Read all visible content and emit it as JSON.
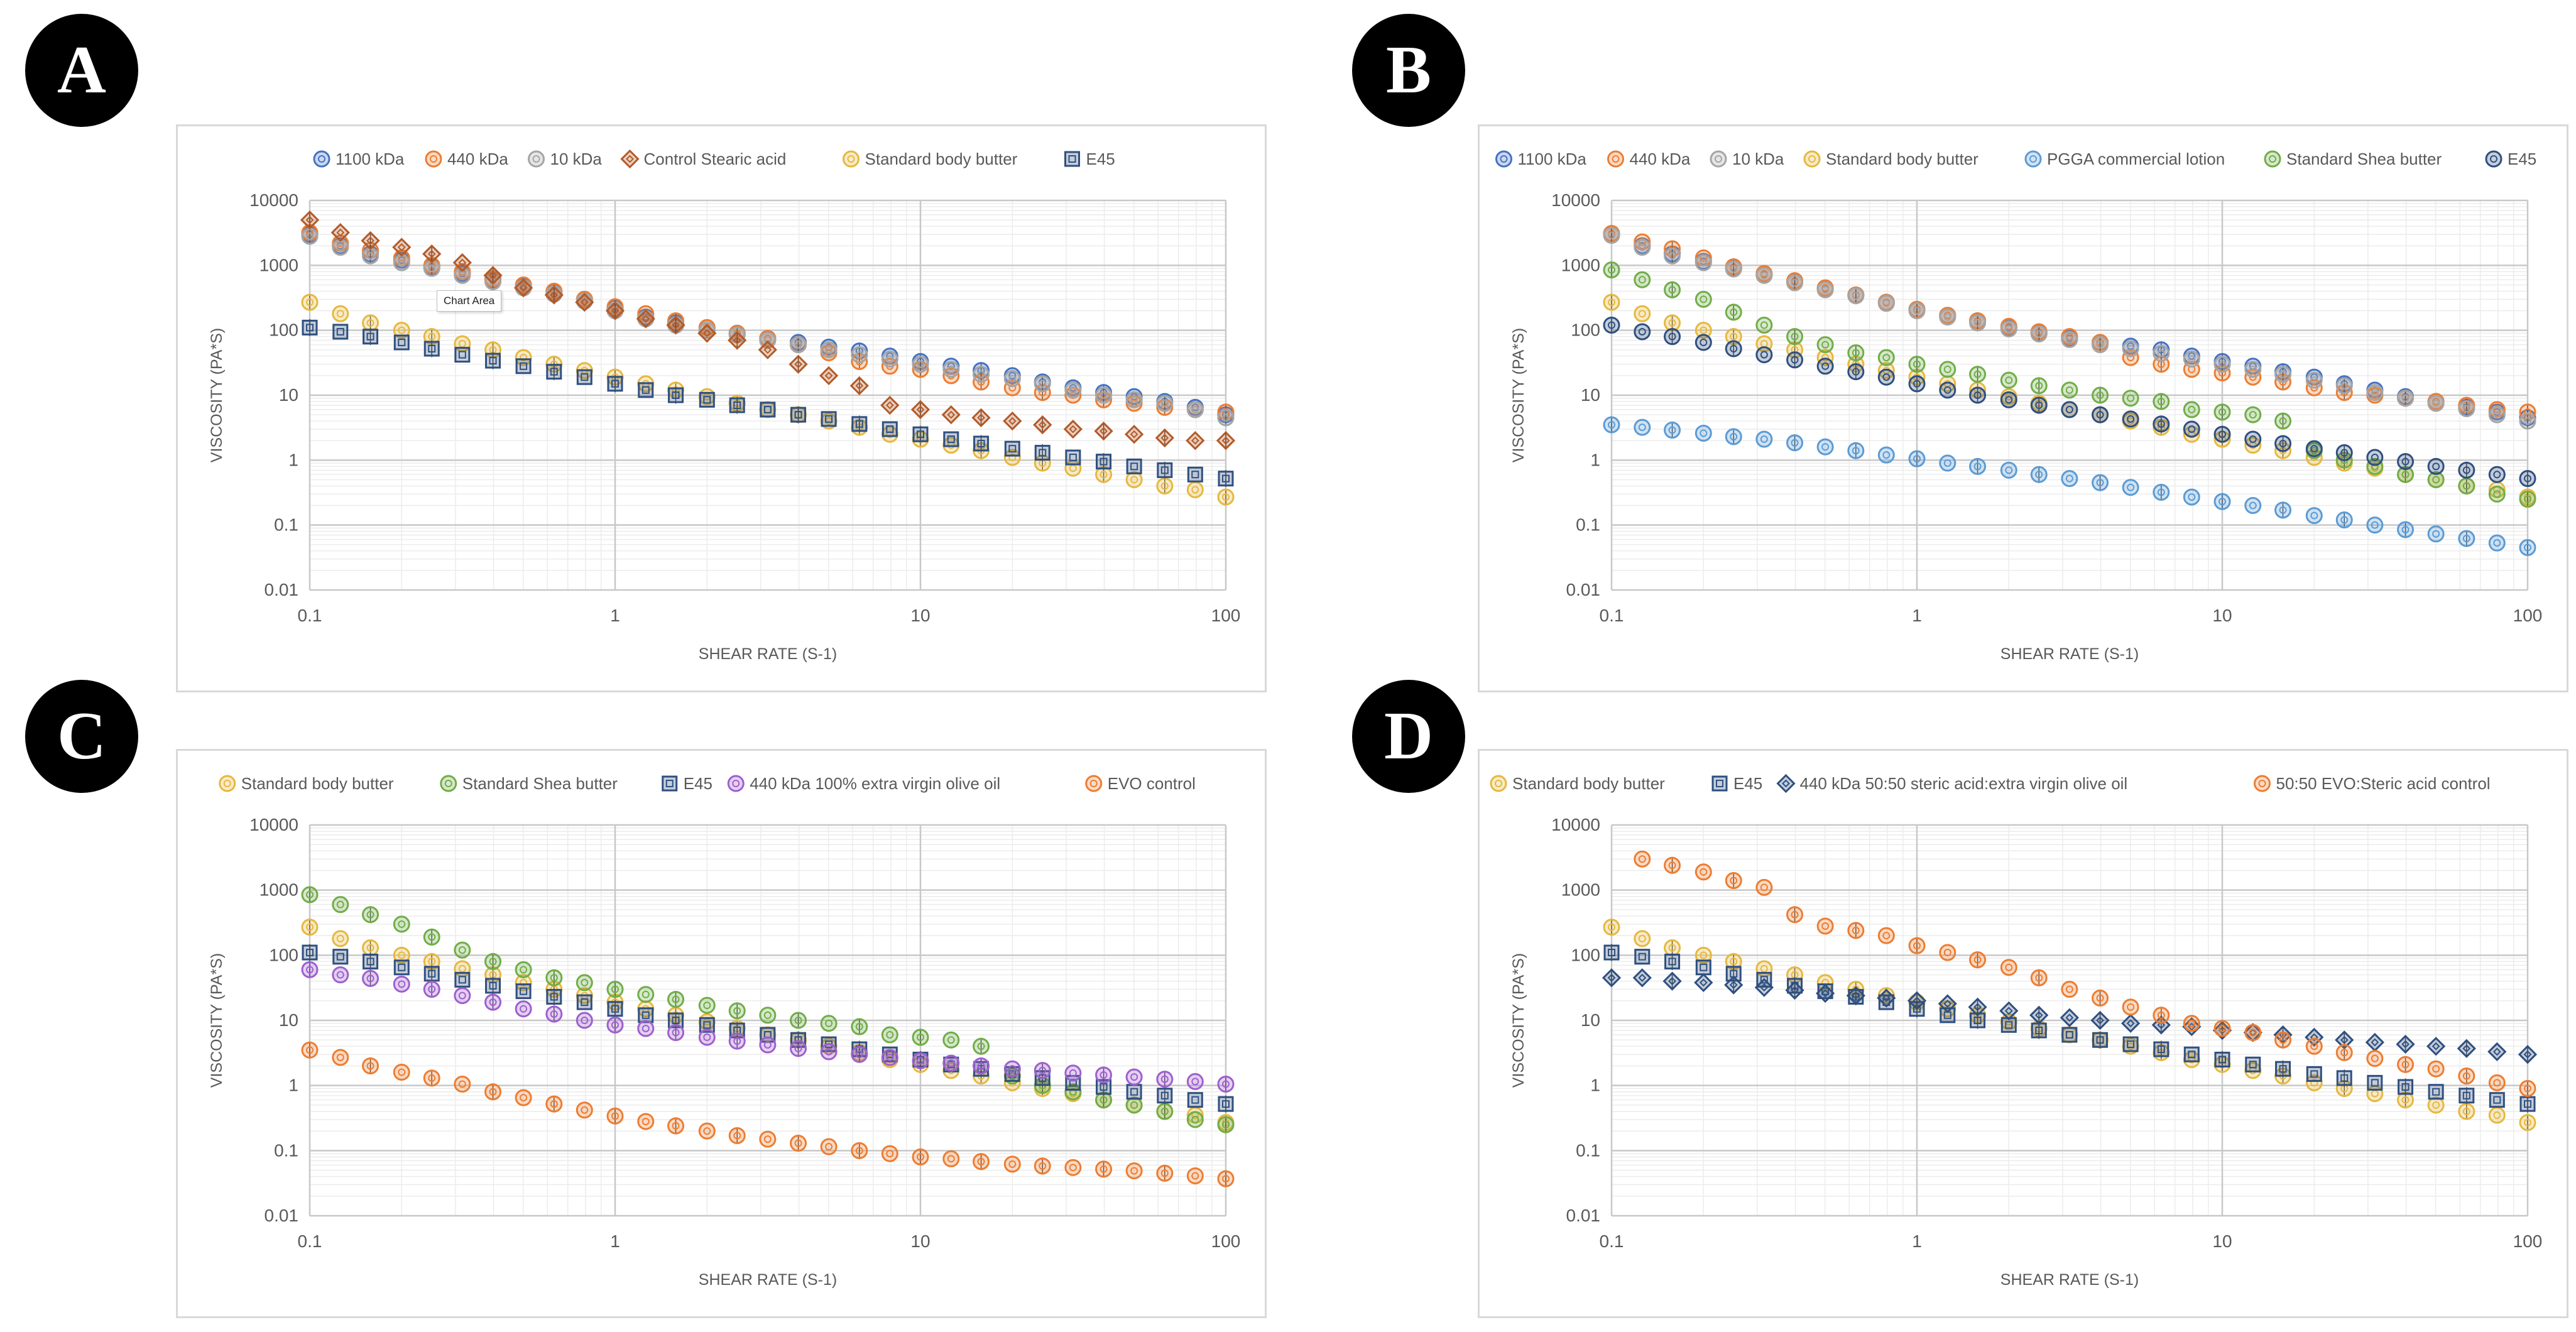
{
  "panels": [
    {
      "label": "A"
    },
    {
      "label": "B"
    },
    {
      "label": "C"
    },
    {
      "label": "D"
    }
  ],
  "tooltip": "Chart Area",
  "series_colors": {
    "1100 kDa": "#4472C4",
    "440 kDa": "#ED7D31",
    "10 kDa": "#A5A5A5",
    "Control Stearic acid": "#B35A28",
    "Standard body butter": "#E6B83E",
    "E45": "#2F4F7F",
    "PGGA commercial lotion": "#5B9BD5",
    "Standard Shea butter": "#70AD47",
    "440 kDa 100% extra virgin olive oil": "#9E5FCF",
    "EVO control": "#ED7D31",
    "440 kDa 50:50 steric acid:extra virgin olive oil": "#2F4F7F",
    "50:50 EVO:Steric acid control": "#ED7D31"
  },
  "chart_data": [
    {
      "panel": "A",
      "type": "scatter",
      "x": [
        0.1,
        0.126,
        0.158,
        0.2,
        0.251,
        0.316,
        0.398,
        0.501,
        0.631,
        0.794,
        1,
        1.26,
        1.58,
        2,
        2.51,
        3.16,
        3.98,
        5.01,
        6.31,
        7.94,
        10,
        12.6,
        15.8,
        20,
        25.1,
        31.6,
        39.8,
        50.1,
        63.1,
        79.4,
        100
      ],
      "xlabel": "SHEAR RATE (S-1)",
      "ylabel": "VISCOSITY (PA*S)",
      "xlim": [
        0.1,
        100
      ],
      "ylim": [
        0.01,
        10000
      ],
      "xscale": "log",
      "yscale": "log",
      "xticks": [
        "0.1",
        "1",
        "10",
        "100"
      ],
      "yticks": [
        "0.01",
        "0.1",
        "1",
        "10",
        "100",
        "1000",
        "10000"
      ],
      "grid": true,
      "legend": "top",
      "series": [
        {
          "name": "1100 kDa",
          "marker": "circle",
          "values": [
            3000,
            2000,
            1500,
            1200,
            950,
            750,
            600,
            480,
            390,
            300,
            220,
            160,
            130,
            110,
            90,
            75,
            65,
            55,
            48,
            40,
            33,
            28,
            24,
            20,
            16,
            13,
            11,
            9.5,
            8,
            6.5,
            5
          ]
        },
        {
          "name": "440 kDa",
          "marker": "circle",
          "values": [
            3200,
            2200,
            1700,
            1300,
            1000,
            800,
            620,
            500,
            400,
            300,
            230,
            180,
            140,
            110,
            90,
            75,
            60,
            45,
            33,
            28,
            25,
            20,
            16,
            13,
            11,
            10,
            8.5,
            7.5,
            6.5,
            6,
            5.5
          ]
        },
        {
          "name": "10 kDa",
          "marker": "circle",
          "values": [
            2800,
            1900,
            1400,
            1100,
            900,
            700,
            560,
            450,
            360,
            280,
            200,
            150,
            120,
            100,
            85,
            70,
            60,
            50,
            42,
            36,
            30,
            25,
            21,
            18,
            15,
            12,
            10,
            8.5,
            7.5,
            6,
            4.5
          ]
        },
        {
          "name": "Control Stearic acid",
          "marker": "diamond",
          "values": [
            5000,
            3200,
            2400,
            1900,
            1500,
            1100,
            700,
            450,
            350,
            270,
            200,
            150,
            120,
            90,
            70,
            50,
            30,
            20,
            14,
            7,
            6,
            5,
            4.5,
            4,
            3.5,
            3,
            2.8,
            2.5,
            2.2,
            2,
            2
          ]
        },
        {
          "name": "Standard body butter",
          "marker": "circle",
          "values": [
            270,
            180,
            130,
            100,
            80,
            62,
            50,
            38,
            30,
            24,
            19,
            15,
            12,
            9.5,
            7.5,
            6,
            5,
            4,
            3.2,
            2.5,
            2.1,
            1.7,
            1.4,
            1.1,
            0.9,
            0.75,
            0.6,
            0.5,
            0.4,
            0.35,
            0.27
          ]
        },
        {
          "name": "E45",
          "marker": "square",
          "values": [
            110,
            95,
            80,
            65,
            52,
            42,
            34,
            28,
            23,
            19,
            15,
            12,
            10,
            8.5,
            7,
            6,
            5,
            4.3,
            3.6,
            3,
            2.5,
            2.1,
            1.8,
            1.5,
            1.3,
            1.1,
            0.95,
            0.8,
            0.7,
            0.6,
            0.52
          ]
        }
      ]
    },
    {
      "panel": "B",
      "type": "scatter",
      "x": [
        0.1,
        0.126,
        0.158,
        0.2,
        0.251,
        0.316,
        0.398,
        0.501,
        0.631,
        0.794,
        1,
        1.26,
        1.58,
        2,
        2.51,
        3.16,
        3.98,
        5.01,
        6.31,
        7.94,
        10,
        12.6,
        15.8,
        20,
        25.1,
        31.6,
        39.8,
        50.1,
        63.1,
        79.4,
        100
      ],
      "xlabel": "SHEAR RATE (S-1)",
      "ylabel": "VISCOSITY (PA*S)",
      "xlim": [
        0.1,
        100
      ],
      "ylim": [
        0.01,
        10000
      ],
      "xscale": "log",
      "yscale": "log",
      "xticks": [
        "0.1",
        "1",
        "10",
        "100"
      ],
      "yticks": [
        "0.01",
        "0.1",
        "1",
        "10",
        "100",
        "1000",
        "10000"
      ],
      "grid": true,
      "legend": "top",
      "series": [
        {
          "name": "1100 kDa",
          "marker": "circle",
          "values": [
            3000,
            2000,
            1500,
            1150,
            900,
            720,
            560,
            440,
            350,
            270,
            210,
            170,
            140,
            110,
            90,
            75,
            65,
            57,
            50,
            40,
            33,
            28,
            23,
            19,
            15,
            12,
            9.5,
            8,
            6.5,
            5.5,
            4.5
          ]
        },
        {
          "name": "440 kDa",
          "marker": "circle",
          "values": [
            3100,
            2300,
            1800,
            1300,
            950,
            750,
            580,
            450,
            350,
            270,
            210,
            170,
            140,
            115,
            95,
            80,
            65,
            38,
            30,
            25,
            22,
            19,
            16,
            13,
            11,
            10,
            9,
            8,
            7,
            6,
            5.5
          ]
        },
        {
          "name": "10 kDa",
          "marker": "circle",
          "values": [
            2900,
            1900,
            1400,
            1100,
            880,
            700,
            540,
            420,
            340,
            260,
            200,
            160,
            130,
            105,
            88,
            72,
            60,
            52,
            44,
            36,
            30,
            25,
            21,
            17,
            14,
            11,
            9,
            7.5,
            6.2,
            5,
            4
          ]
        },
        {
          "name": "Standard body butter",
          "marker": "circle",
          "values": [
            270,
            180,
            130,
            100,
            80,
            62,
            50,
            38,
            30,
            24,
            19,
            15,
            12,
            9.5,
            7.5,
            6,
            5,
            4,
            3.2,
            2.5,
            2.1,
            1.7,
            1.4,
            1.1,
            0.9,
            0.75,
            0.6,
            0.5,
            0.4,
            0.35,
            0.27
          ]
        },
        {
          "name": "PGGA commercial lotion",
          "marker": "circle",
          "values": [
            3.5,
            3.2,
            2.9,
            2.6,
            2.3,
            2.1,
            1.85,
            1.6,
            1.4,
            1.2,
            1.05,
            0.9,
            0.8,
            0.7,
            0.6,
            0.52,
            0.45,
            0.38,
            0.32,
            0.27,
            0.23,
            0.2,
            0.17,
            0.14,
            0.12,
            0.1,
            0.085,
            0.073,
            0.062,
            0.053,
            0.045
          ]
        },
        {
          "name": "Standard Shea butter",
          "marker": "circle",
          "values": [
            850,
            600,
            420,
            300,
            190,
            120,
            80,
            60,
            45,
            38,
            30,
            25,
            21,
            17,
            14,
            12,
            10,
            9,
            8,
            6,
            5.5,
            5,
            4,
            1.4,
            1,
            0.8,
            0.6,
            0.5,
            0.4,
            0.3,
            0.25
          ]
        },
        {
          "name": "E45",
          "marker": "circle",
          "values": [
            120,
            95,
            80,
            65,
            52,
            42,
            35,
            28,
            23,
            19,
            15,
            12,
            10,
            8.5,
            7,
            6,
            5,
            4.3,
            3.6,
            3,
            2.5,
            2.1,
            1.8,
            1.5,
            1.3,
            1.1,
            0.95,
            0.8,
            0.7,
            0.6,
            0.52
          ]
        }
      ]
    },
    {
      "panel": "C",
      "type": "scatter",
      "x": [
        0.1,
        0.126,
        0.158,
        0.2,
        0.251,
        0.316,
        0.398,
        0.501,
        0.631,
        0.794,
        1,
        1.26,
        1.58,
        2,
        2.51,
        3.16,
        3.98,
        5.01,
        6.31,
        7.94,
        10,
        12.6,
        15.8,
        20,
        25.1,
        31.6,
        39.8,
        50.1,
        63.1,
        79.4,
        100
      ],
      "xlabel": "SHEAR RATE (S-1)",
      "ylabel": "VISCOSITY (PA*S)",
      "xlim": [
        0.1,
        100
      ],
      "ylim": [
        0.01,
        10000
      ],
      "xscale": "log",
      "yscale": "log",
      "xticks": [
        "0.1",
        "1",
        "10",
        "100"
      ],
      "yticks": [
        "0.01",
        "0.1",
        "1",
        "10",
        "100",
        "1000",
        "10000"
      ],
      "grid": true,
      "legend": "top",
      "series": [
        {
          "name": "Standard body butter",
          "marker": "circle",
          "values": [
            270,
            180,
            130,
            100,
            80,
            62,
            50,
            38,
            30,
            24,
            19,
            15,
            12,
            9.5,
            7.5,
            6,
            5,
            4,
            3.2,
            2.5,
            2.1,
            1.7,
            1.4,
            1.1,
            0.9,
            0.75,
            0.6,
            0.5,
            0.4,
            0.35,
            0.27
          ]
        },
        {
          "name": "Standard Shea butter",
          "marker": "circle",
          "values": [
            850,
            600,
            420,
            300,
            190,
            120,
            80,
            60,
            45,
            38,
            30,
            25,
            21,
            17,
            14,
            12,
            10,
            9,
            8,
            6,
            5.5,
            5,
            4,
            1.4,
            1,
            0.8,
            0.6,
            0.5,
            0.4,
            0.3,
            0.25
          ]
        },
        {
          "name": "E45",
          "marker": "square",
          "values": [
            110,
            95,
            80,
            65,
            52,
            42,
            34,
            28,
            23,
            19,
            15,
            12,
            10,
            8.5,
            7,
            6,
            5,
            4.3,
            3.6,
            3,
            2.5,
            2.1,
            1.8,
            1.5,
            1.3,
            1.1,
            0.95,
            0.8,
            0.7,
            0.6,
            0.52
          ]
        },
        {
          "name": "440 kDa 100% extra virgin olive oil",
          "marker": "circle",
          "values": [
            60,
            50,
            44,
            36,
            30,
            24,
            19,
            15,
            12.5,
            10,
            8.5,
            7.5,
            6.5,
            5.5,
            4.8,
            4.2,
            3.7,
            3.3,
            3,
            2.7,
            2.4,
            2.2,
            2,
            1.8,
            1.7,
            1.55,
            1.45,
            1.35,
            1.25,
            1.15,
            1.05
          ]
        },
        {
          "name": "EVO control",
          "marker": "circle",
          "values": [
            3.5,
            2.7,
            2,
            1.6,
            1.3,
            1.05,
            0.8,
            0.65,
            0.52,
            0.42,
            0.34,
            0.28,
            0.24,
            0.2,
            0.17,
            0.15,
            0.13,
            0.115,
            0.1,
            0.09,
            0.08,
            0.075,
            0.068,
            0.062,
            0.058,
            0.055,
            0.052,
            0.049,
            0.045,
            0.041,
            0.037
          ]
        }
      ]
    },
    {
      "panel": "D",
      "type": "scatter",
      "x": [
        0.1,
        0.126,
        0.158,
        0.2,
        0.251,
        0.316,
        0.398,
        0.501,
        0.631,
        0.794,
        1,
        1.26,
        1.58,
        2,
        2.51,
        3.16,
        3.98,
        5.01,
        6.31,
        7.94,
        10,
        12.6,
        15.8,
        20,
        25.1,
        31.6,
        39.8,
        50.1,
        63.1,
        79.4,
        100
      ],
      "xlabel": "SHEAR RATE (S-1)",
      "ylabel": "VISCOSITY (PA*S)",
      "xlim": [
        0.1,
        100
      ],
      "ylim": [
        0.01,
        10000
      ],
      "xscale": "log",
      "yscale": "log",
      "xticks": [
        "0.1",
        "1",
        "10",
        "100"
      ],
      "yticks": [
        "0.01",
        "0.1",
        "1",
        "10",
        "100",
        "1000",
        "10000"
      ],
      "grid": true,
      "legend": "top",
      "series": [
        {
          "name": "Standard body butter",
          "marker": "circle",
          "values": [
            270,
            180,
            130,
            100,
            80,
            62,
            50,
            38,
            30,
            24,
            19,
            15,
            12,
            9.5,
            7.5,
            6,
            5,
            4,
            3.2,
            2.5,
            2.1,
            1.7,
            1.4,
            1.1,
            0.9,
            0.75,
            0.6,
            0.5,
            0.4,
            0.35,
            0.27
          ]
        },
        {
          "name": "E45",
          "marker": "square",
          "values": [
            110,
            95,
            80,
            65,
            52,
            42,
            34,
            28,
            23,
            19,
            15,
            12,
            10,
            8.5,
            7,
            6,
            5,
            4.3,
            3.6,
            3,
            2.5,
            2.1,
            1.8,
            1.5,
            1.3,
            1.1,
            0.95,
            0.8,
            0.7,
            0.6,
            0.52
          ]
        },
        {
          "name": "440 kDa 50:50 steric acid:extra virgin olive oil",
          "marker": "diamond",
          "values": [
            45,
            45,
            40,
            38,
            35,
            32,
            29,
            26,
            24,
            22,
            20,
            18,
            16,
            14,
            12,
            11,
            10,
            9,
            8.5,
            8,
            7,
            6.5,
            6,
            5.5,
            5,
            4.6,
            4.3,
            4,
            3.7,
            3.3,
            3
          ]
        },
        {
          "name": "50:50 EVO:Steric acid control",
          "marker": "circle",
          "values": [
            null,
            3000,
            2400,
            1900,
            1400,
            1100,
            420,
            280,
            240,
            200,
            140,
            110,
            85,
            65,
            45,
            30,
            22,
            16,
            12,
            9,
            7.5,
            6.5,
            5,
            4,
            3.2,
            2.6,
            2.1,
            1.8,
            1.4,
            1.1,
            0.9
          ]
        }
      ]
    }
  ]
}
